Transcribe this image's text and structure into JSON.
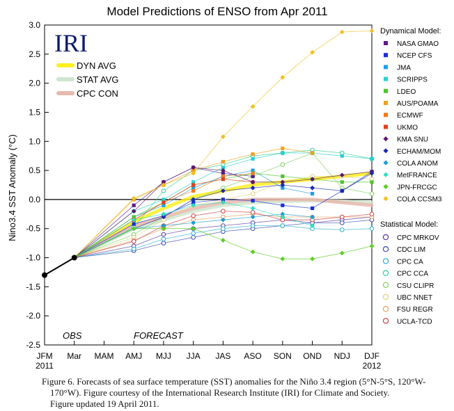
{
  "chart_data": {
    "type": "line",
    "title": "Model Predictions of ENSO from Apr 2011",
    "ylabel": "Nino3.4 SST Anomaly (°C)",
    "xlabel": "",
    "x": [
      "JFM",
      "Mar",
      "MAM",
      "AMJ",
      "MJJ",
      "JJA",
      "JAS",
      "ASO",
      "SON",
      "OND",
      "NDJ",
      "DJF"
    ],
    "x_sublabels": {
      "start": "2011",
      "end": "2012"
    },
    "ylim": [
      -2.5,
      3.0
    ],
    "yticks": [
      "3.0",
      "2.5",
      "2.0",
      "1.5",
      "1.0",
      "0.5",
      "0.0",
      "-0.5",
      "-1.0",
      "-1.5",
      "-2.0",
      "-2.5"
    ],
    "ytick_values": [
      3.0,
      2.5,
      2.0,
      1.5,
      1.0,
      0.5,
      0.0,
      -0.5,
      -1.0,
      -1.5,
      -2.0,
      -2.5
    ],
    "grid": false,
    "logo": "IRI",
    "annotations": {
      "obs": "OBS",
      "forecast": "FORECAST"
    },
    "observed": {
      "x": [
        0,
        1
      ],
      "values": [
        -1.3,
        -1.0
      ],
      "color": "#000000"
    },
    "averages": [
      {
        "name": "DYN AVG",
        "color": "#ffee22",
        "values": [
          -0.38,
          -0.15,
          0.05,
          0.15,
          0.25,
          0.3,
          0.35,
          0.4,
          0.45
        ]
      },
      {
        "name": "STAT AVG",
        "color": "#cfe5cf",
        "values": [
          -0.5,
          -0.35,
          -0.2,
          -0.1,
          -0.05,
          -0.03,
          -0.02,
          -0.03,
          -0.05
        ]
      },
      {
        "name": "CPC CON",
        "color": "#e7b9ad",
        "values": [
          -0.45,
          -0.3,
          -0.15,
          -0.05,
          0.0,
          0.0,
          0.0,
          -0.05,
          -0.1
        ]
      }
    ],
    "legend_dynamical_title": "Dynamical Model:",
    "legend_statistical_title": "Statistical Model:",
    "dynamical_series": [
      {
        "name": "NASA GMAO",
        "color": "#5a1a8c",
        "values": [
          -0.1,
          0.3,
          0.55,
          0.45,
          0.4,
          null,
          null,
          null,
          null
        ]
      },
      {
        "name": "NCEP CFS",
        "color": "#1a2fd6",
        "values": [
          -0.42,
          -0.28,
          -0.05,
          0.0,
          -0.02,
          -0.1,
          -0.15,
          0.15,
          0.48
        ]
      },
      {
        "name": "JMA",
        "color": "#1e9fe6",
        "values": [
          -0.3,
          -0.1,
          0.2,
          0.4,
          0.5,
          0.2,
          0.1,
          null,
          null
        ]
      },
      {
        "name": "SCRIPPS",
        "color": "#2ad0d0",
        "values": [
          -0.2,
          0.0,
          0.3,
          0.55,
          0.7,
          0.8,
          0.8,
          0.75,
          0.7
        ]
      },
      {
        "name": "LDEO",
        "color": "#4fc42c",
        "values": [
          -0.3,
          -0.05,
          0.25,
          0.35,
          0.45,
          0.4,
          0.35,
          0.3,
          0.3
        ]
      },
      {
        "name": "AUS/POAMA",
        "color": "#f0a020",
        "values": [
          0.0,
          0.25,
          0.5,
          0.65,
          0.78,
          0.88,
          0.8,
          null,
          null
        ]
      },
      {
        "name": "ECMWF",
        "color": "#f07a1e",
        "values": [
          -0.35,
          -0.05,
          0.15,
          0.4,
          0.45,
          null,
          null,
          null,
          null
        ]
      },
      {
        "name": "UKMO",
        "color": "#e0401e",
        "values": [
          -0.35,
          -0.05,
          0.25,
          0.35,
          0.3,
          null,
          null,
          null,
          null
        ]
      },
      {
        "name": "KMA SNU",
        "color": "#5a1a6a",
        "values": [
          -0.2,
          0.3,
          0.55,
          0.5,
          0.3,
          0.3,
          0.35,
          0.42,
          0.48
        ]
      },
      {
        "name": "ECHAM/MOM",
        "color": "#1a2ab0",
        "values": [
          -0.5,
          -0.3,
          0.0,
          0.15,
          0.2,
          0.25,
          0.2,
          0.15,
          0.45
        ]
      },
      {
        "name": "COLA ANOM",
        "color": "#1e9cd0",
        "values": [
          -0.5,
          -0.45,
          -0.4,
          -0.35,
          -0.3,
          -0.25,
          -0.3,
          null,
          null
        ]
      },
      {
        "name": "MetFRANCE",
        "color": "#2ae0c0",
        "values": [
          -0.35,
          -0.25,
          -0.1,
          -0.05,
          -0.15,
          -0.3,
          -0.45,
          null,
          null
        ]
      },
      {
        "name": "JPN-FRCGC",
        "color": "#5ad020",
        "values": [
          -0.5,
          -0.5,
          -0.5,
          -0.7,
          -0.9,
          -1.02,
          -1.02,
          -0.92,
          -0.8
        ]
      },
      {
        "name": "COLA CCSM3",
        "color": "#f0c020",
        "values": [
          0.02,
          0.25,
          0.45,
          1.08,
          1.6,
          2.1,
          2.53,
          2.88,
          2.9
        ]
      }
    ],
    "statistical_series": [
      {
        "name": "CPC MRKOV",
        "color": "#5a3aa0",
        "values": [
          -0.8,
          -0.6,
          -0.5,
          -0.45,
          -0.4,
          -0.35,
          -0.4,
          -0.35,
          -0.3
        ]
      },
      {
        "name": "CDC LIM",
        "color": "#3a4ab0",
        "values": [
          -0.88,
          -0.75,
          -0.65,
          -0.55,
          -0.5,
          -0.45,
          -0.4,
          -0.4,
          -0.35
        ]
      },
      {
        "name": "CPC CA",
        "color": "#2ab0d0",
        "values": [
          -0.85,
          -0.68,
          -0.58,
          -0.5,
          -0.45,
          -0.45,
          -0.5,
          -0.52,
          -0.5
        ]
      },
      {
        "name": "CPC CCA",
        "color": "#30d090",
        "values": [
          -0.48,
          0.15,
          0.5,
          0.6,
          0.75,
          0.8,
          0.85,
          0.8,
          0.7
        ]
      },
      {
        "name": "CSU CLIPR",
        "color": "#80d060",
        "values": [
          -0.6,
          -0.3,
          0.0,
          0.2,
          0.4,
          0.6,
          0.8,
          0.2,
          0.1
        ]
      },
      {
        "name": "UBC NNET",
        "color": "#e0d080",
        "values": [
          -0.65,
          -0.35,
          -0.1,
          0.0,
          0.1,
          0.3,
          0.4,
          0.4,
          0.35
        ]
      },
      {
        "name": "FSU REGR",
        "color": "#e0a060",
        "values": [
          -0.7,
          -0.5,
          -0.35,
          -0.3,
          -0.25,
          -0.3,
          -0.3,
          -0.3,
          -0.3
        ]
      },
      {
        "name": "UCLA-TCD",
        "color": "#d04040",
        "values": [
          -0.72,
          -0.45,
          -0.28,
          -0.2,
          -0.22,
          -0.35,
          -0.35,
          -0.3,
          -0.25
        ]
      }
    ]
  },
  "caption": {
    "line1": "Figure 6. Forecasts of sea surface temperature (SST) anomalies for the Niño 3.4 region (5°N-5°S, 120°W-",
    "line2": "170°W).  Figure courtesy of the International Research Institute (IRI) for Climate and Society.",
    "line3": "Figure updated 19 April 2011."
  }
}
